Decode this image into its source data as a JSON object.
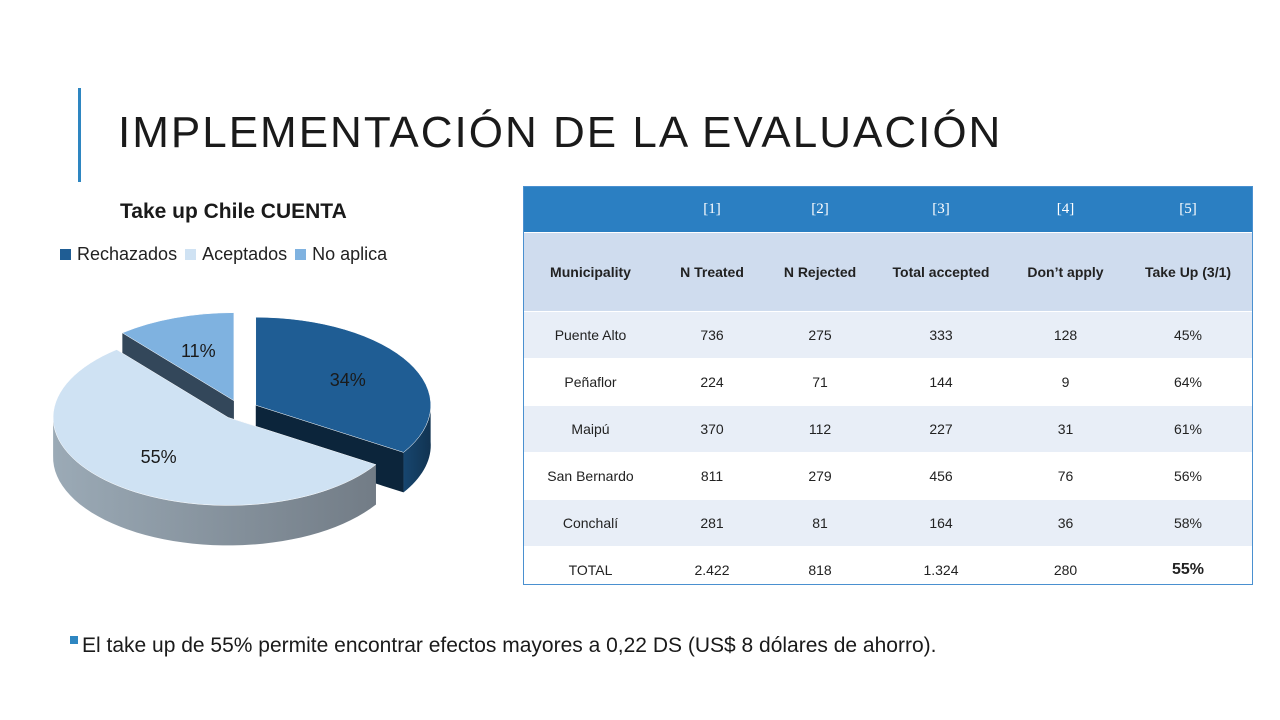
{
  "slide": {
    "title": "IMPLEMENTACIÓN DE LA EVALUACIÓN",
    "accent_color": "#2e86c1"
  },
  "chart_data": {
    "type": "pie",
    "title": "Take up Chile CUENTA",
    "legend_position": "top",
    "slices": [
      {
        "name": "Rechazados",
        "value": 34,
        "label": "34%",
        "color": "#1f5d94"
      },
      {
        "name": "Aceptados",
        "value": 55,
        "label": "55%",
        "color": "#cfe2f3"
      },
      {
        "name": "No aplica",
        "value": 11,
        "label": "11%",
        "color": "#7fb2e0"
      }
    ],
    "three_d": true,
    "exploded": true
  },
  "table": {
    "column_numbers": [
      "",
      "[1]",
      "[2]",
      "[3]",
      "[4]",
      "[5]"
    ],
    "headers": [
      "Municipality",
      "N Treated",
      "N Rejected",
      "Total accepted",
      "Don’t apply",
      "Take Up (3/1)"
    ],
    "rows": [
      [
        "Puente Alto",
        "736",
        "275",
        "333",
        "128",
        "45%"
      ],
      [
        "Peñaflor",
        "224",
        "71",
        "144",
        "9",
        "64%"
      ],
      [
        "Maipú",
        "370",
        "112",
        "227",
        "31",
        "61%"
      ],
      [
        "San Bernardo",
        "811",
        "279",
        "456",
        "76",
        "56%"
      ],
      [
        "Conchalí",
        "281",
        "81",
        "164",
        "36",
        "58%"
      ],
      [
        "TOTAL",
        "2.422",
        "818",
        "1.324",
        "280",
        "55%"
      ]
    ]
  },
  "footnote": {
    "text": "El take up de 55% permite encontrar efectos mayores a 0,22 DS (US$ 8 dólares de ahorro)."
  }
}
